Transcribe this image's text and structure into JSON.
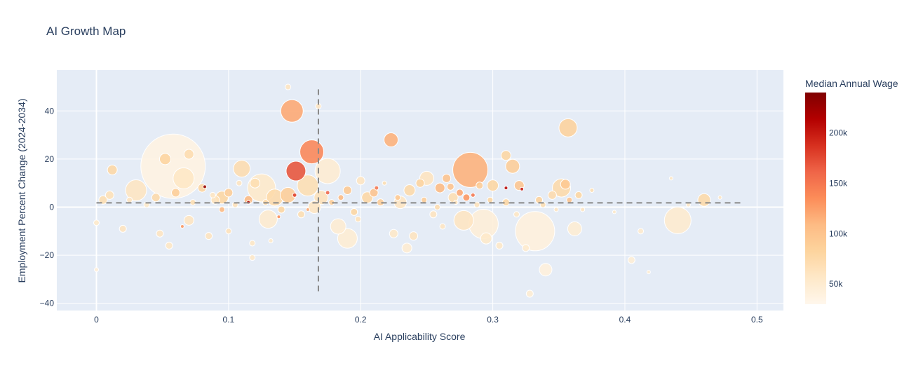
{
  "chart_data": {
    "type": "scatter",
    "title": "AI Growth Map",
    "xlabel": "AI Applicability Score",
    "ylabel": "Employment Percent Change (2024-2034)",
    "xlim": [
      -0.03,
      0.52
    ],
    "ylim": [
      -43,
      57
    ],
    "xticks": [
      0,
      0.1,
      0.2,
      0.3,
      0.4,
      0.5
    ],
    "xtick_labels": [
      "0",
      "0.1",
      "0.2",
      "0.3",
      "0.4",
      "0.5"
    ],
    "yticks": [
      -40,
      -20,
      0,
      20,
      40
    ],
    "ytick_labels": [
      "−40",
      "−20",
      "0",
      "20",
      "40"
    ],
    "grid": true,
    "reference_lines": {
      "vertical_x": 0.168,
      "vertical_y_range": [
        -36,
        49
      ],
      "horizontal_y": 1.8,
      "horizontal_x_range": [
        0,
        0.49
      ]
    },
    "colorbar": {
      "title": "Median Annual Wage",
      "range": [
        30000,
        240000
      ],
      "ticks": [
        50000,
        100000,
        150000,
        200000
      ],
      "tick_labels": [
        "50k",
        "100k",
        "150k",
        "200k"
      ],
      "colorscale": [
        "#fff7ec",
        "#fee8c8",
        "#fdd49e",
        "#fdbb84",
        "#fc8d59",
        "#ef6548",
        "#d7301f",
        "#b30000",
        "#7f0000"
      ]
    },
    "points": [
      {
        "x": 0.058,
        "y": 17,
        "wage": 38000,
        "size": 92
      },
      {
        "x": 0.148,
        "y": 40,
        "wage": 120000,
        "size": 32
      },
      {
        "x": 0.163,
        "y": 23,
        "wage": 140000,
        "size": 34
      },
      {
        "x": 0.151,
        "y": 15,
        "wage": 170000,
        "size": 28
      },
      {
        "x": 0.283,
        "y": 15.5,
        "wage": 115000,
        "size": 50
      },
      {
        "x": 0.357,
        "y": 33,
        "wage": 85000,
        "size": 26
      },
      {
        "x": 0.223,
        "y": 28,
        "wage": 115000,
        "size": 20
      },
      {
        "x": 0.332,
        "y": -10,
        "wage": 42000,
        "size": 56
      },
      {
        "x": 0.293,
        "y": -7,
        "wage": 45000,
        "size": 42
      },
      {
        "x": 0.44,
        "y": -5.5,
        "wage": 52000,
        "size": 38
      },
      {
        "x": 0.175,
        "y": 15,
        "wage": 50000,
        "size": 36
      },
      {
        "x": 0.125,
        "y": 8,
        "wage": 55000,
        "size": 40
      },
      {
        "x": 0.066,
        "y": 12,
        "wage": 58000,
        "size": 30
      },
      {
        "x": 0.03,
        "y": 7,
        "wage": 60000,
        "size": 30
      },
      {
        "x": 0.352,
        "y": 8,
        "wage": 75000,
        "size": 26
      },
      {
        "x": 0.315,
        "y": 17,
        "wage": 90000,
        "size": 20
      },
      {
        "x": 0.25,
        "y": 12,
        "wage": 62000,
        "size": 20
      },
      {
        "x": 0.278,
        "y": -5.5,
        "wage": 60000,
        "size": 28
      },
      {
        "x": 0.19,
        "y": -13,
        "wage": 48000,
        "size": 28
      },
      {
        "x": 0.183,
        "y": -8,
        "wage": 50000,
        "size": 22
      },
      {
        "x": 0.13,
        "y": -5,
        "wage": 52000,
        "size": 26
      },
      {
        "x": 0.11,
        "y": 16,
        "wage": 72000,
        "size": 24
      },
      {
        "x": 0.16,
        "y": 9,
        "wage": 70000,
        "size": 30
      },
      {
        "x": 0.135,
        "y": 4,
        "wage": 75000,
        "size": 24
      },
      {
        "x": 0.145,
        "y": 5,
        "wage": 90000,
        "size": 22
      },
      {
        "x": 0.095,
        "y": 4,
        "wage": 80000,
        "size": 18
      },
      {
        "x": 0.17,
        "y": 4,
        "wage": 65000,
        "size": 20
      },
      {
        "x": 0.237,
        "y": 7,
        "wage": 75000,
        "size": 16
      },
      {
        "x": 0.3,
        "y": 9,
        "wage": 80000,
        "size": 16
      },
      {
        "x": 0.34,
        "y": -26,
        "wage": 42000,
        "size": 18
      },
      {
        "x": 0.235,
        "y": -17,
        "wage": 50000,
        "size": 14
      },
      {
        "x": 0.295,
        "y": -13,
        "wage": 55000,
        "size": 16
      },
      {
        "x": 0.052,
        "y": 20,
        "wage": 82000,
        "size": 16
      },
      {
        "x": 0.07,
        "y": 22,
        "wage": 72000,
        "size": 14
      },
      {
        "x": 0.012,
        "y": 15.5,
        "wage": 78000,
        "size": 14
      },
      {
        "x": 0.31,
        "y": 21.5,
        "wage": 80000,
        "size": 14
      },
      {
        "x": 0.46,
        "y": 3,
        "wage": 76000,
        "size": 18
      },
      {
        "x": 0.362,
        "y": -9,
        "wage": 48000,
        "size": 20
      },
      {
        "x": 0.165,
        "y": 0,
        "wage": 60000,
        "size": 18
      },
      {
        "x": 0.23,
        "y": 2,
        "wage": 60000,
        "size": 18
      },
      {
        "x": 0.205,
        "y": 4,
        "wage": 78000,
        "size": 16
      },
      {
        "x": 0.26,
        "y": 8,
        "wage": 110000,
        "size": 14
      },
      {
        "x": 0.32,
        "y": 9,
        "wage": 98000,
        "size": 14
      },
      {
        "x": 0.355,
        "y": 9.5,
        "wage": 95000,
        "size": 14
      },
      {
        "x": 0.27,
        "y": 4,
        "wage": 70000,
        "size": 14
      },
      {
        "x": 0.005,
        "y": 3,
        "wage": 70000,
        "size": 12
      },
      {
        "x": 0.01,
        "y": 5,
        "wage": 66000,
        "size": 12
      },
      {
        "x": 0.045,
        "y": 4,
        "wage": 75000,
        "size": 12
      },
      {
        "x": 0.06,
        "y": 6,
        "wage": 90000,
        "size": 12
      },
      {
        "x": 0.08,
        "y": 8,
        "wage": 82000,
        "size": 12
      },
      {
        "x": 0.09,
        "y": 3,
        "wage": 64000,
        "size": 12
      },
      {
        "x": 0.1,
        "y": 6,
        "wage": 90000,
        "size": 12
      },
      {
        "x": 0.115,
        "y": 3,
        "wage": 110000,
        "size": 12
      },
      {
        "x": 0.12,
        "y": 10,
        "wage": 70000,
        "size": 14
      },
      {
        "x": 0.14,
        "y": -1,
        "wage": 80000,
        "size": 10
      },
      {
        "x": 0.155,
        "y": -3,
        "wage": 70000,
        "size": 10
      },
      {
        "x": 0.19,
        "y": 7,
        "wage": 95000,
        "size": 12
      },
      {
        "x": 0.195,
        "y": -2,
        "wage": 80000,
        "size": 10
      },
      {
        "x": 0.2,
        "y": 11,
        "wage": 60000,
        "size": 12
      },
      {
        "x": 0.21,
        "y": 6,
        "wage": 100000,
        "size": 12
      },
      {
        "x": 0.215,
        "y": 2,
        "wage": 90000,
        "size": 10
      },
      {
        "x": 0.225,
        "y": -11,
        "wage": 56000,
        "size": 12
      },
      {
        "x": 0.24,
        "y": -12,
        "wage": 62000,
        "size": 12
      },
      {
        "x": 0.245,
        "y": 10,
        "wage": 84000,
        "size": 12
      },
      {
        "x": 0.255,
        "y": -3,
        "wage": 62000,
        "size": 10
      },
      {
        "x": 0.265,
        "y": 12,
        "wage": 100000,
        "size": 12
      },
      {
        "x": 0.268,
        "y": 8.5,
        "wage": 100000,
        "size": 10
      },
      {
        "x": 0.275,
        "y": 6,
        "wage": 120000,
        "size": 10
      },
      {
        "x": 0.28,
        "y": 4,
        "wage": 130000,
        "size": 10
      },
      {
        "x": 0.29,
        "y": 9,
        "wage": 90000,
        "size": 10
      },
      {
        "x": 0.305,
        "y": -16,
        "wage": 56000,
        "size": 10
      },
      {
        "x": 0.31,
        "y": 2,
        "wage": 80000,
        "size": 10
      },
      {
        "x": 0.325,
        "y": -17,
        "wage": 52000,
        "size": 10
      },
      {
        "x": 0.328,
        "y": -36,
        "wage": 48000,
        "size": 10
      },
      {
        "x": 0.335,
        "y": 3,
        "wage": 84000,
        "size": 10
      },
      {
        "x": 0.345,
        "y": 5,
        "wage": 74000,
        "size": 12
      },
      {
        "x": 0.365,
        "y": 5,
        "wage": 80000,
        "size": 10
      },
      {
        "x": 0.405,
        "y": -22,
        "wage": 46000,
        "size": 10
      },
      {
        "x": 0.412,
        "y": -10,
        "wage": 52000,
        "size": 8
      },
      {
        "x": 0.02,
        "y": -9,
        "wage": 62000,
        "size": 10
      },
      {
        "x": 0.0,
        "y": -6.5,
        "wage": 55000,
        "size": 8
      },
      {
        "x": 0.0,
        "y": -26,
        "wage": 45000,
        "size": 6
      },
      {
        "x": 0.048,
        "y": -11,
        "wage": 60000,
        "size": 10
      },
      {
        "x": 0.055,
        "y": -16,
        "wage": 58000,
        "size": 10
      },
      {
        "x": 0.07,
        "y": -5.5,
        "wage": 60000,
        "size": 14
      },
      {
        "x": 0.085,
        "y": -12,
        "wage": 62000,
        "size": 10
      },
      {
        "x": 0.1,
        "y": -10,
        "wage": 65000,
        "size": 8
      },
      {
        "x": 0.118,
        "y": -21,
        "wage": 56000,
        "size": 8
      },
      {
        "x": 0.118,
        "y": -15,
        "wage": 58000,
        "size": 8
      },
      {
        "x": 0.145,
        "y": 50,
        "wage": 60000,
        "size": 8
      },
      {
        "x": 0.168,
        "y": 42,
        "wage": 60000,
        "size": 8
      },
      {
        "x": 0.082,
        "y": 8.5,
        "wage": 230000,
        "size": 5
      },
      {
        "x": 0.115,
        "y": 2,
        "wage": 210000,
        "size": 5
      },
      {
        "x": 0.31,
        "y": 8,
        "wage": 210000,
        "size": 5
      },
      {
        "x": 0.322,
        "y": 7.5,
        "wage": 200000,
        "size": 5
      },
      {
        "x": 0.15,
        "y": 5,
        "wage": 180000,
        "size": 6
      },
      {
        "x": 0.175,
        "y": 6,
        "wage": 160000,
        "size": 6
      },
      {
        "x": 0.212,
        "y": 8,
        "wage": 150000,
        "size": 6
      },
      {
        "x": 0.285,
        "y": 5,
        "wage": 150000,
        "size": 6
      },
      {
        "x": 0.065,
        "y": -8,
        "wage": 130000,
        "size": 5
      },
      {
        "x": 0.138,
        "y": -4,
        "wage": 135000,
        "size": 5
      },
      {
        "x": 0.16,
        "y": -1,
        "wage": 120000,
        "size": 5
      },
      {
        "x": 0.095,
        "y": -1,
        "wage": 110000,
        "size": 8
      },
      {
        "x": 0.025,
        "y": 3,
        "wage": 62000,
        "size": 8
      },
      {
        "x": 0.038,
        "y": 1,
        "wage": 55000,
        "size": 8
      },
      {
        "x": 0.073,
        "y": 2,
        "wage": 70000,
        "size": 8
      },
      {
        "x": 0.088,
        "y": 5,
        "wage": 60000,
        "size": 8
      },
      {
        "x": 0.105,
        "y": 1,
        "wage": 65000,
        "size": 8
      },
      {
        "x": 0.108,
        "y": 10,
        "wage": 60000,
        "size": 8
      },
      {
        "x": 0.128,
        "y": 2,
        "wage": 80000,
        "size": 8
      },
      {
        "x": 0.132,
        "y": -14,
        "wage": 55000,
        "size": 6
      },
      {
        "x": 0.178,
        "y": 2,
        "wage": 90000,
        "size": 8
      },
      {
        "x": 0.185,
        "y": 4,
        "wage": 110000,
        "size": 8
      },
      {
        "x": 0.198,
        "y": -5,
        "wage": 65000,
        "size": 8
      },
      {
        "x": 0.218,
        "y": 10,
        "wage": 70000,
        "size": 6
      },
      {
        "x": 0.228,
        "y": 4,
        "wage": 95000,
        "size": 8
      },
      {
        "x": 0.248,
        "y": 3,
        "wage": 90000,
        "size": 8
      },
      {
        "x": 0.258,
        "y": 0,
        "wage": 72000,
        "size": 8
      },
      {
        "x": 0.262,
        "y": -8,
        "wage": 60000,
        "size": 8
      },
      {
        "x": 0.272,
        "y": 2,
        "wage": 65000,
        "size": 6
      },
      {
        "x": 0.288,
        "y": 1,
        "wage": 64000,
        "size": 8
      },
      {
        "x": 0.298,
        "y": 3,
        "wage": 80000,
        "size": 8
      },
      {
        "x": 0.318,
        "y": -3,
        "wage": 58000,
        "size": 8
      },
      {
        "x": 0.338,
        "y": 1,
        "wage": 70000,
        "size": 8
      },
      {
        "x": 0.348,
        "y": -1,
        "wage": 60000,
        "size": 6
      },
      {
        "x": 0.358,
        "y": 3,
        "wage": 100000,
        "size": 8
      },
      {
        "x": 0.368,
        "y": -1,
        "wage": 60000,
        "size": 6
      },
      {
        "x": 0.375,
        "y": 7,
        "wage": 70000,
        "size": 6
      },
      {
        "x": 0.392,
        "y": -2,
        "wage": 55000,
        "size": 5
      },
      {
        "x": 0.418,
        "y": -27,
        "wage": 48000,
        "size": 5
      },
      {
        "x": 0.435,
        "y": 12,
        "wage": 58000,
        "size": 5
      },
      {
        "x": 0.448,
        "y": 1,
        "wage": 56000,
        "size": 6
      },
      {
        "x": 0.472,
        "y": 4,
        "wage": 60000,
        "size": 5
      }
    ]
  }
}
